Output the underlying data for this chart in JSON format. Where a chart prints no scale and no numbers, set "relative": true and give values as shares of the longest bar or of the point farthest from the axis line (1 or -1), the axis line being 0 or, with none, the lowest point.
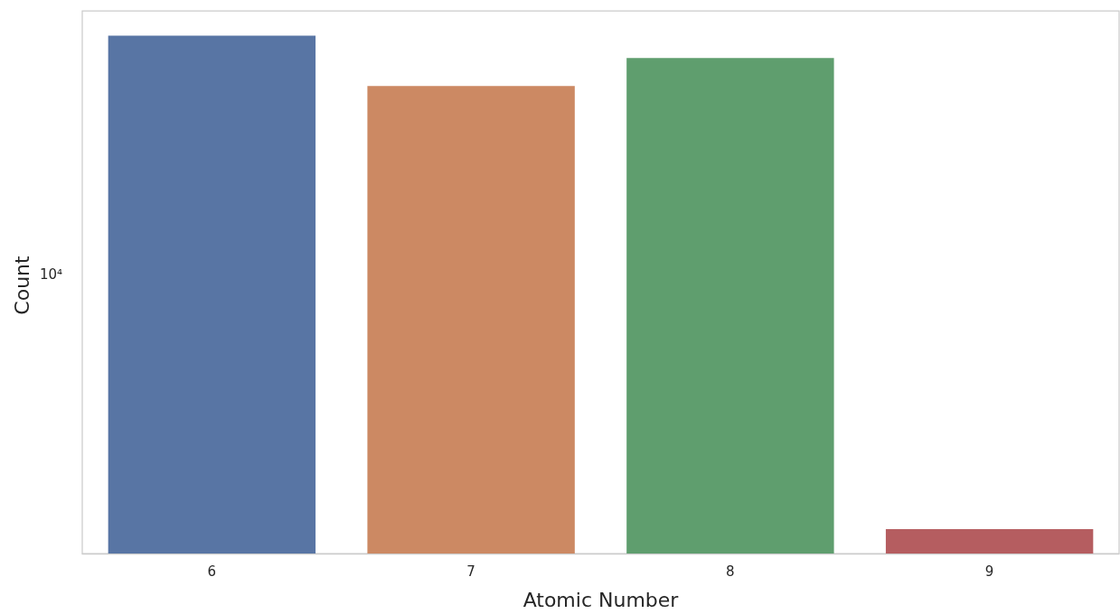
{
  "chart_data": {
    "type": "bar",
    "xlabel": "Atomic Number",
    "ylabel": "Count",
    "categories": [
      "6",
      "7",
      "8",
      "9"
    ],
    "values": [
      1,
      0.903,
      0.957,
      0.047
    ],
    "colors": [
      "#5875a4",
      "#cc8963",
      "#5f9e6e",
      "#b55d60"
    ],
    "relative": true,
    "annotations": [
      "10⁴"
    ]
  }
}
